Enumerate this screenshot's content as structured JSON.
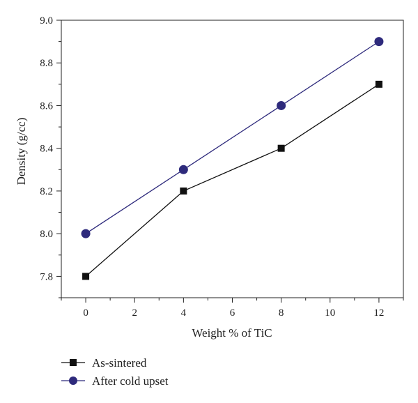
{
  "chart_data": {
    "type": "line",
    "xlabel": "Weight % of TiC",
    "ylabel": "Density (g/cc)",
    "xlim": [
      -1,
      13
    ],
    "ylim": [
      7.7,
      9.0
    ],
    "xticks": [
      "0",
      "2",
      "4",
      "6",
      "8",
      "10",
      "12"
    ],
    "yticks": [
      "7.8",
      "8.0",
      "8.2",
      "8.4",
      "8.6",
      "8.8",
      "9.0"
    ],
    "grid": false,
    "legend_position": "bottom-left, below plot",
    "series": [
      {
        "name": "As-sintered",
        "marker": "square",
        "color": "#111111",
        "x": [
          0,
          4,
          8,
          12
        ],
        "y": [
          7.8,
          8.2,
          8.4,
          8.7
        ]
      },
      {
        "name": "After cold upset",
        "marker": "circle",
        "color": "#2e2a7c",
        "x": [
          0,
          4,
          8,
          12
        ],
        "y": [
          8.0,
          8.3,
          8.6,
          8.9
        ]
      }
    ]
  }
}
